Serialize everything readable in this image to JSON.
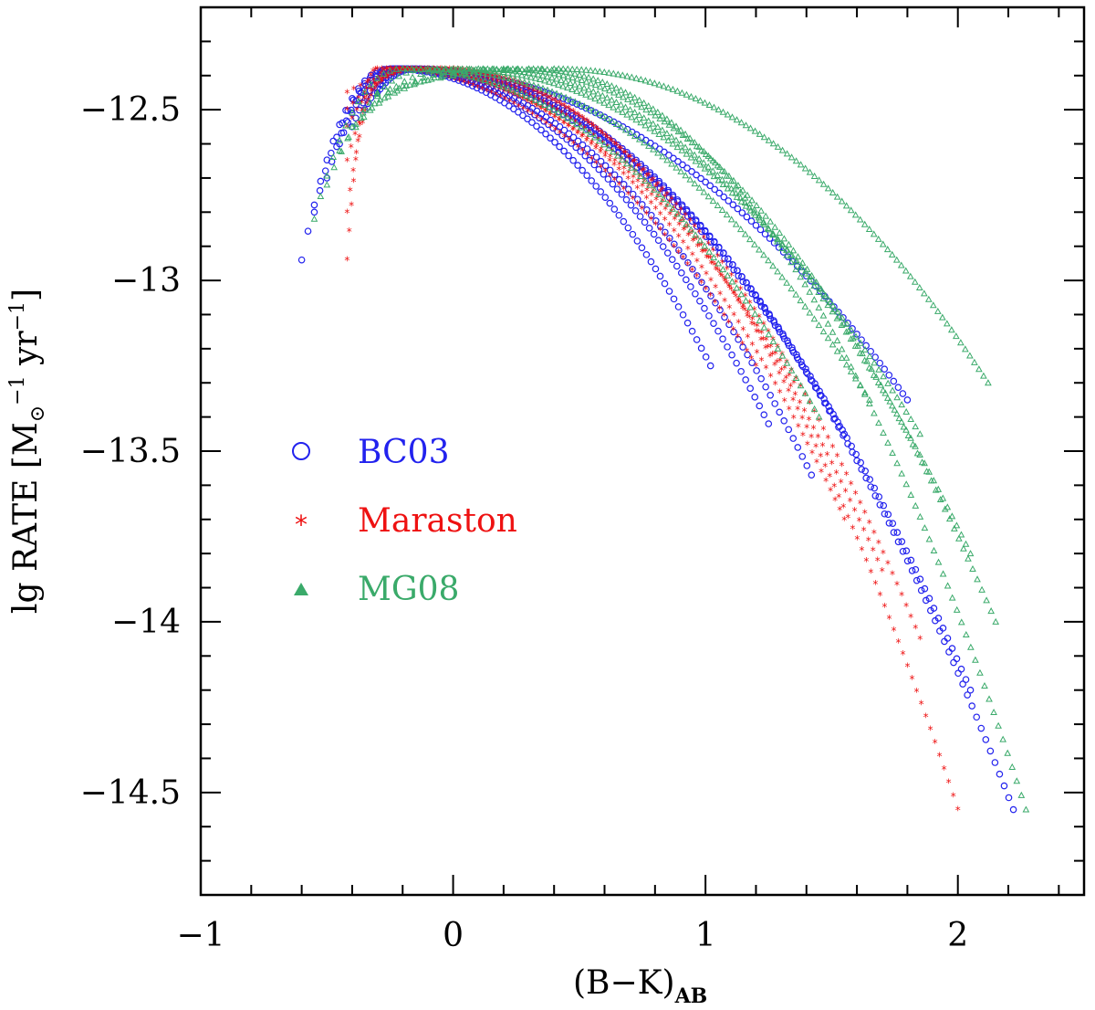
{
  "chart_data": {
    "type": "scatter",
    "xlabel": "(B−K)",
    "xlabel_sub": "AB",
    "ylabel": "lg RATE [M",
    "ylabel_sun": "⊙",
    "ylabel_exp1": "−1",
    "ylabel_mid": " yr",
    "ylabel_exp2": "−1",
    "ylabel_end": "]",
    "xlim": [
      -1,
      2.5
    ],
    "ylim": [
      -14.8,
      -12.2
    ],
    "x_ticks": [
      -1,
      0,
      1,
      2
    ],
    "x_tick_labels": [
      "−1",
      "0",
      "1",
      "2"
    ],
    "y_ticks": [
      -12.5,
      -13,
      -13.5,
      -14,
      -14.5
    ],
    "y_tick_labels": [
      "−12.5",
      "−13",
      "−13.5",
      "−14",
      "−14.5"
    ],
    "legend_position": "left-middle",
    "series": [
      {
        "name": "BC03",
        "marker": "circle",
        "color": "#2222ee",
        "tracks": [
          {
            "start": [
              -0.6,
              -12.94
            ],
            "peak": [
              -0.25,
              -12.38
            ],
            "end": [
              1.02,
              -13.25
            ]
          },
          {
            "start": [
              -0.55,
              -12.8
            ],
            "peak": [
              -0.24,
              -12.38
            ],
            "end": [
              1.25,
              -13.42
            ]
          },
          {
            "start": [
              -0.5,
              -12.7
            ],
            "peak": [
              -0.23,
              -12.38
            ],
            "end": [
              1.42,
              -13.57
            ]
          },
          {
            "start": [
              -0.45,
              -12.6
            ],
            "peak": [
              -0.22,
              -12.38
            ],
            "end": [
              1.55,
              -13.45
            ]
          },
          {
            "start": [
              -0.4,
              -12.55
            ],
            "peak": [
              -0.2,
              -12.38
            ],
            "end": [
              1.8,
              -13.35
            ]
          },
          {
            "start": [
              -0.35,
              -12.5
            ],
            "peak": [
              -0.18,
              -12.38
            ],
            "end": [
              2.05,
              -14.2
            ]
          },
          {
            "start": [
              -0.3,
              -12.45
            ],
            "peak": [
              -0.15,
              -12.38
            ],
            "end": [
              2.22,
              -14.55
            ]
          }
        ]
      },
      {
        "name": "Maraston",
        "marker": "star",
        "color": "#ee1111",
        "tracks": [
          {
            "start": [
              -0.42,
              -12.94
            ],
            "peak": [
              -0.3,
              -12.38
            ],
            "end": [
              1.2,
              -13.25
            ]
          },
          {
            "start": [
              -0.42,
              -12.8
            ],
            "peak": [
              -0.25,
              -12.38
            ],
            "end": [
              1.35,
              -13.3
            ]
          },
          {
            "start": [
              -0.42,
              -12.65
            ],
            "peak": [
              -0.2,
              -12.38
            ],
            "end": [
              1.55,
              -13.7
            ]
          },
          {
            "start": [
              -0.42,
              -12.55
            ],
            "peak": [
              -0.15,
              -12.38
            ],
            "end": [
              1.7,
              -13.85
            ]
          },
          {
            "start": [
              -0.42,
              -12.5
            ],
            "peak": [
              -0.1,
              -12.38
            ],
            "end": [
              1.85,
              -14.05
            ]
          },
          {
            "start": [
              -0.42,
              -12.45
            ],
            "peak": [
              -0.05,
              -12.38
            ],
            "end": [
              2.0,
              -14.55
            ]
          }
        ]
      },
      {
        "name": "MG08",
        "marker": "triangle",
        "color": "#3aaa6a",
        "tracks": [
          {
            "start": [
              -0.55,
              -12.82
            ],
            "peak": [
              -0.2,
              -12.38
            ],
            "end": [
              1.45,
              -13.4
            ]
          },
          {
            "start": [
              -0.5,
              -12.72
            ],
            "peak": [
              -0.1,
              -12.38
            ],
            "end": [
              1.65,
              -13.35
            ]
          },
          {
            "start": [
              -0.45,
              -12.62
            ],
            "peak": [
              0.0,
              -12.38
            ],
            "end": [
              1.85,
              -13.45
            ]
          },
          {
            "start": [
              -0.4,
              -12.55
            ],
            "peak": [
              0.1,
              -12.38
            ],
            "end": [
              2.05,
              -13.8
            ]
          },
          {
            "start": [
              -0.35,
              -12.5
            ],
            "peak": [
              0.2,
              -12.38
            ],
            "end": [
              2.15,
              -14.0
            ]
          },
          {
            "start": [
              -0.3,
              -12.46
            ],
            "peak": [
              0.3,
              -12.38
            ],
            "end": [
              2.27,
              -14.55
            ]
          },
          {
            "start": [
              -0.3,
              -12.45
            ],
            "peak": [
              0.4,
              -12.38
            ],
            "end": [
              2.12,
              -13.3
            ]
          }
        ]
      }
    ]
  }
}
